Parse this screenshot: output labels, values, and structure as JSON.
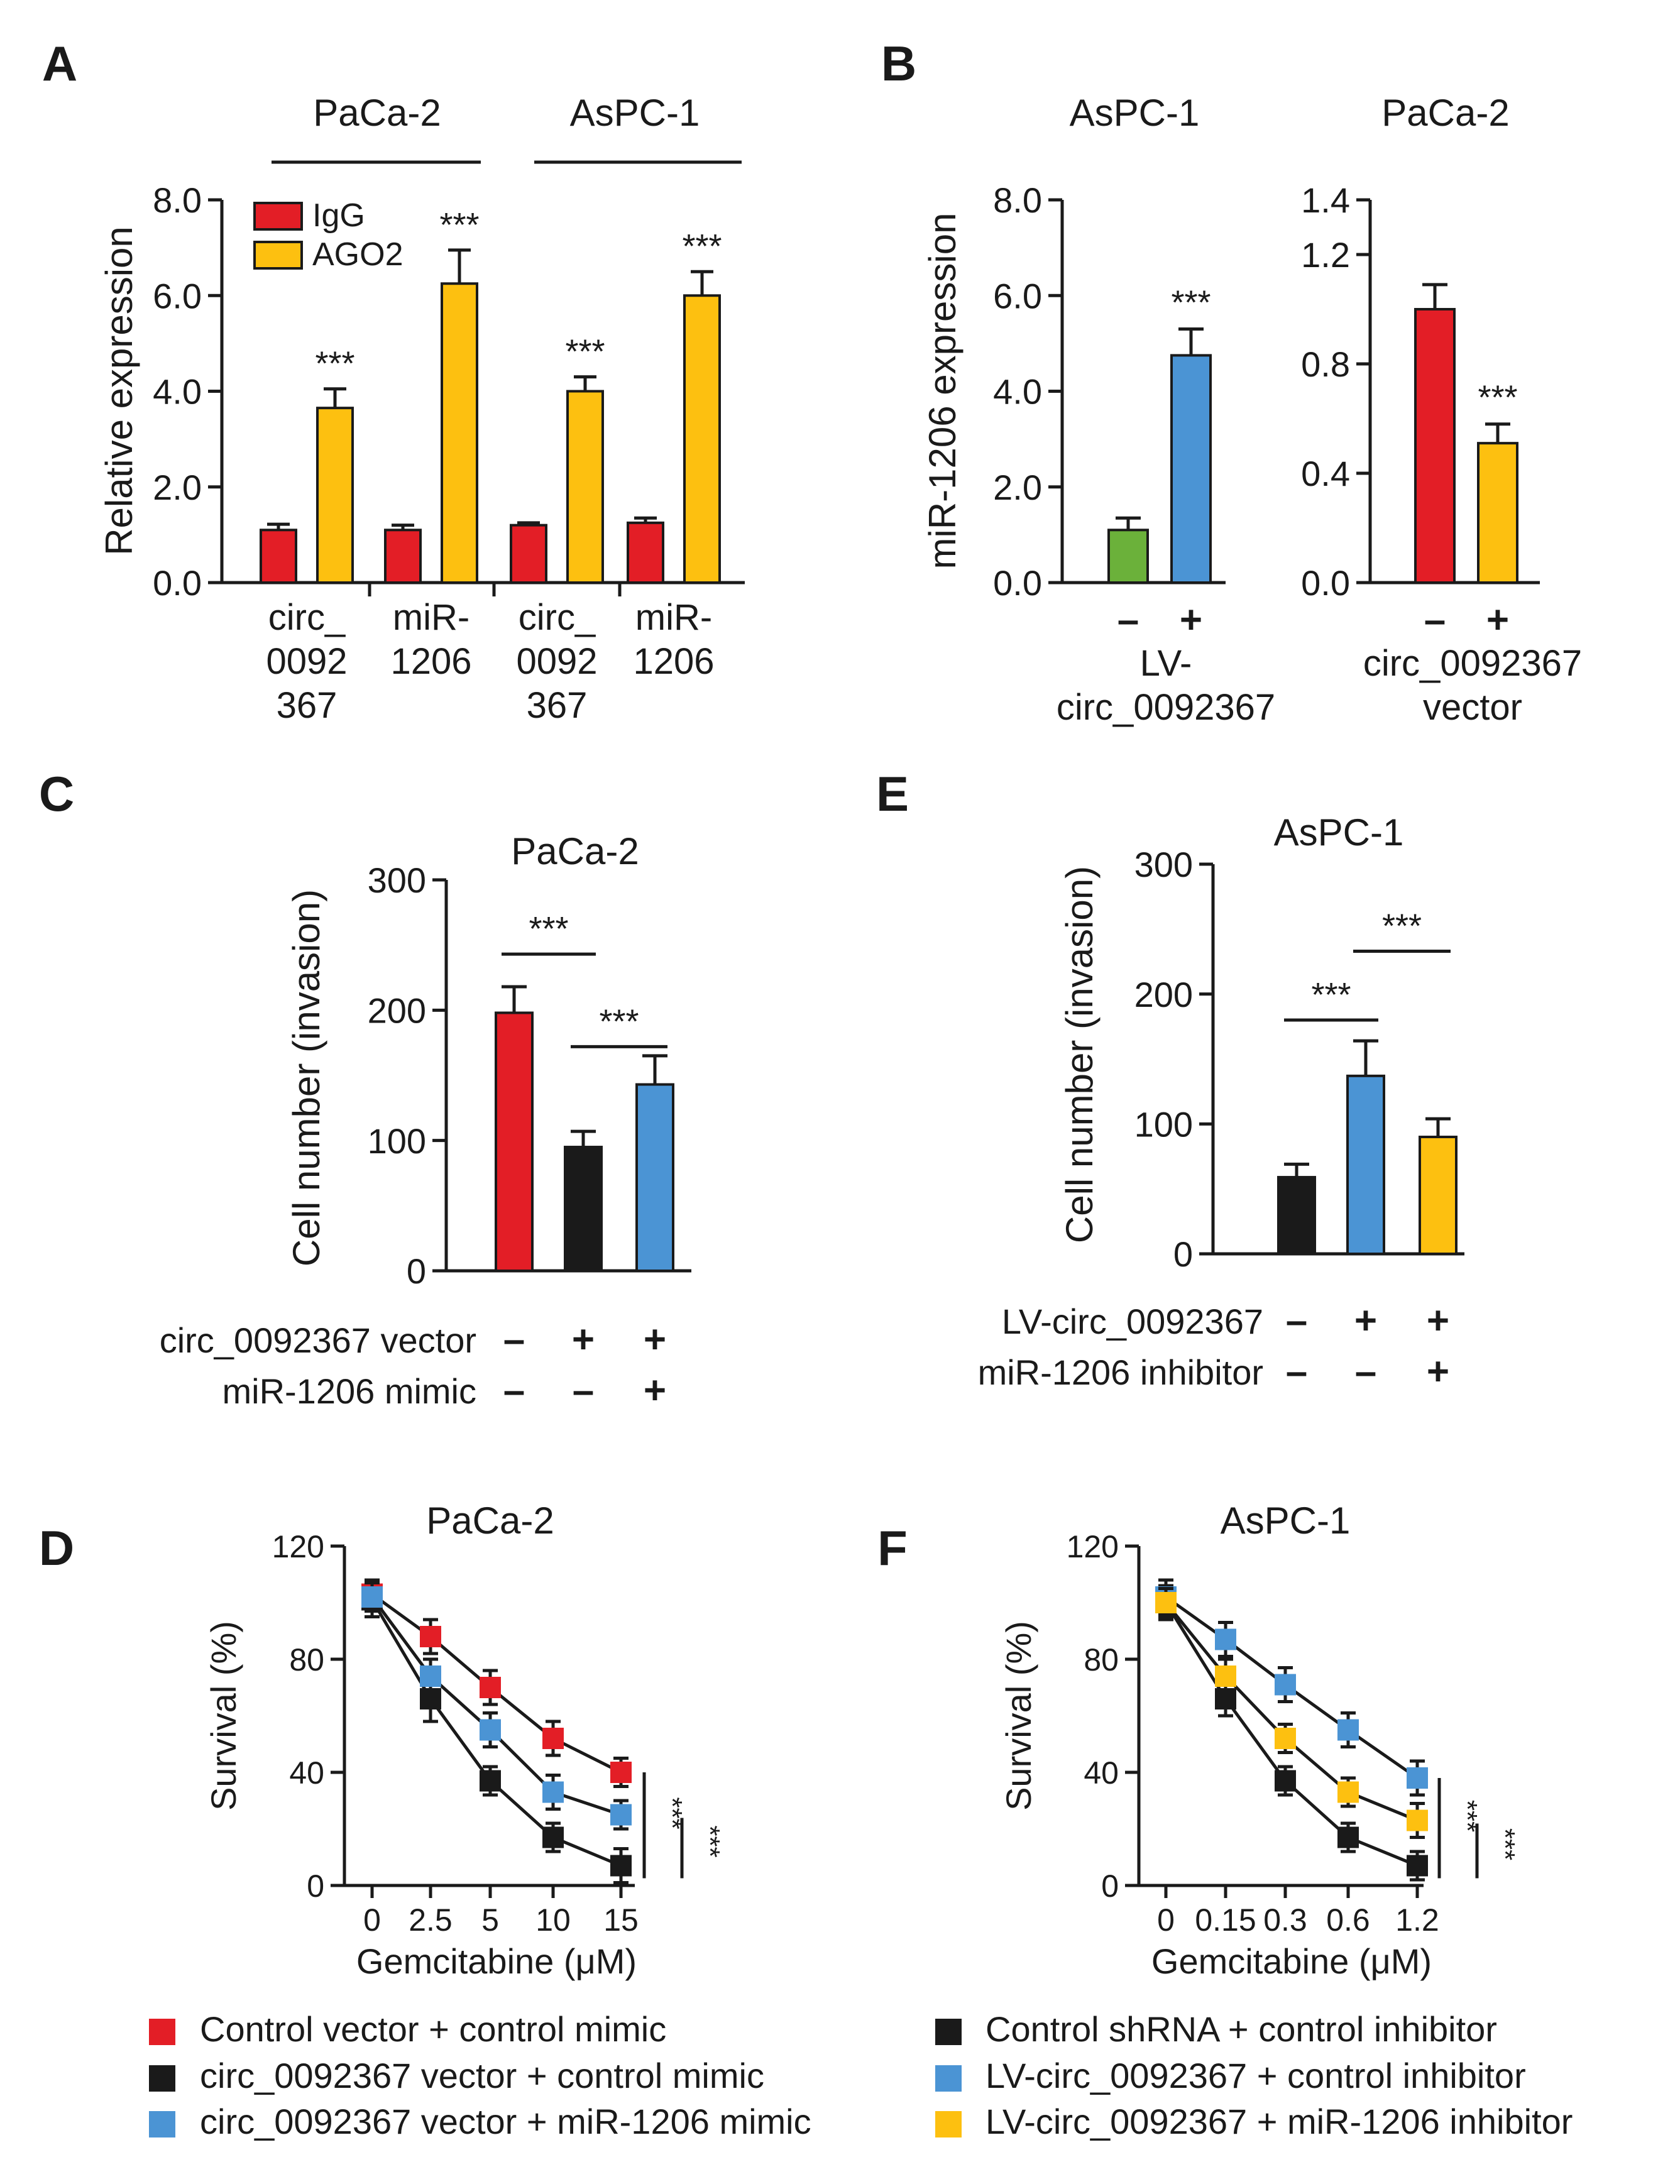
{
  "colors": {
    "red": "#e31e26",
    "yellow": "#fdc010",
    "green": "#6bb13a",
    "blue": "#4b94d4",
    "black": "#1a1a1a"
  },
  "chart_data": [
    {
      "id": "A",
      "type": "bar",
      "panel_letter": "A",
      "ylabel": "Relative expression",
      "ylim": [
        0,
        8
      ],
      "yticks": [
        "0.0",
        "2.0",
        "4.0",
        "6.0",
        "8.0"
      ],
      "group_headers": [
        "PaCa-2",
        "AsPC-1"
      ],
      "categories": [
        [
          "circ_",
          "0092",
          "367"
        ],
        [
          "miR-",
          "1206"
        ],
        [
          "circ_",
          "0092",
          "367"
        ],
        [
          "miR-",
          "1206"
        ]
      ],
      "legend": [
        "IgG",
        "AGO2"
      ],
      "series": [
        {
          "name": "IgG",
          "color": "red",
          "values": [
            1.1,
            1.1,
            1.2,
            1.25
          ],
          "err": [
            0.12,
            0.1,
            0.05,
            0.1
          ]
        },
        {
          "name": "AGO2",
          "color": "yellow",
          "values": [
            3.65,
            6.25,
            4.0,
            6.0
          ],
          "err": [
            0.4,
            0.7,
            0.3,
            0.5
          ]
        }
      ],
      "sig": [
        "***",
        "***",
        "***",
        "***"
      ]
    },
    {
      "id": "B1",
      "type": "bar",
      "panel_letter": "B",
      "title": "AsPC-1",
      "ylabel": "miR-1206 expression",
      "ylim": [
        0,
        8
      ],
      "yticks": [
        "0.0",
        "2.0",
        "4.0",
        "6.0",
        "8.0"
      ],
      "signs": [
        "–",
        "+"
      ],
      "condition": [
        "LV-",
        "circ_0092367"
      ],
      "bars": [
        {
          "value": 1.1,
          "err": 0.25,
          "color": "green"
        },
        {
          "value": 4.75,
          "err": 0.55,
          "color": "blue"
        }
      ],
      "sig": "***"
    },
    {
      "id": "B2",
      "type": "bar",
      "title": "PaCa-2",
      "ylim": [
        0,
        1.4
      ],
      "yticks": [
        "0.0",
        "0.4",
        "0.8",
        "1.2",
        "1.4"
      ],
      "signs": [
        "–",
        "+"
      ],
      "condition": [
        "circ_0092367",
        "vector"
      ],
      "bars": [
        {
          "value": 1.0,
          "err": 0.09,
          "color": "red"
        },
        {
          "value": 0.51,
          "err": 0.07,
          "color": "yellow"
        }
      ],
      "sig": "***"
    },
    {
      "id": "C",
      "type": "bar",
      "panel_letter": "C",
      "title": "PaCa-2",
      "ylabel": "Cell number (invasion)",
      "ylim": [
        0,
        300
      ],
      "yticks": [
        "0",
        "100",
        "200",
        "300"
      ],
      "bars": [
        {
          "value": 198,
          "err": 20,
          "color": "red"
        },
        {
          "value": 95,
          "err": 12,
          "color": "black"
        },
        {
          "value": 143,
          "err": 22,
          "color": "blue"
        }
      ],
      "sig_lines": [
        {
          "label": "***",
          "from": 0,
          "to": 1,
          "level": 243
        },
        {
          "label": "***",
          "from": 1,
          "to": 2,
          "level": 172
        }
      ],
      "conditions": [
        {
          "label": "circ_0092367 vector",
          "signs": [
            "–",
            "+",
            "+"
          ]
        },
        {
          "label": "miR-1206 mimic",
          "signs": [
            "–",
            "–",
            "+"
          ]
        }
      ]
    },
    {
      "id": "E",
      "type": "bar",
      "panel_letter": "E",
      "title": "AsPC-1",
      "ylabel": "Cell number (invasion)",
      "ylim": [
        0,
        300
      ],
      "yticks": [
        "0",
        "100",
        "200",
        "300"
      ],
      "bars": [
        {
          "value": 59,
          "err": 10,
          "color": "black"
        },
        {
          "value": 137,
          "err": 27,
          "color": "blue"
        },
        {
          "value": 90,
          "err": 14,
          "color": "yellow"
        }
      ],
      "sig_lines": [
        {
          "label": "***",
          "from": 0,
          "to": 1,
          "level": 180
        },
        {
          "label": "***",
          "from": 1,
          "to": 2,
          "level": 233
        }
      ],
      "conditions": [
        {
          "label": "LV-circ_0092367",
          "signs": [
            "–",
            "+",
            "+"
          ]
        },
        {
          "label": "miR-1206 inhibitor",
          "signs": [
            "–",
            "–",
            "+"
          ]
        }
      ]
    },
    {
      "id": "D",
      "type": "line",
      "panel_letter": "D",
      "title": "PaCa-2",
      "ylabel": "Survival (%)",
      "xlabel": "Gemcitabine (μM)",
      "x": [
        "0",
        "2.5",
        "5",
        "10",
        "15"
      ],
      "ylim": [
        0,
        120
      ],
      "yticks": [
        "0",
        "40",
        "80",
        "120"
      ],
      "series": [
        {
          "name": "Control vector + control mimic",
          "color": "red",
          "values": [
            103,
            88,
            70,
            52,
            40
          ],
          "err": [
            5,
            6,
            6,
            6,
            5
          ]
        },
        {
          "name": "circ_0092367 vector + control mimic",
          "color": "black",
          "values": [
            101,
            66,
            37,
            17,
            7
          ],
          "err": [
            6,
            8,
            5,
            5,
            6
          ]
        },
        {
          "name": "circ_0092367 vector + miR-1206 mimic",
          "color": "blue",
          "values": [
            102,
            74,
            55,
            33,
            25
          ],
          "err": [
            5,
            6,
            6,
            6,
            5
          ]
        }
      ],
      "sig": [
        "***",
        "***"
      ]
    },
    {
      "id": "F",
      "type": "line",
      "panel_letter": "F",
      "title": "AsPC-1",
      "ylabel": "Survival (%)",
      "xlabel": "Gemcitabine (μM)",
      "x": [
        "0",
        "0.15",
        "0.3",
        "0.6",
        "1.2"
      ],
      "ylim": [
        0,
        120
      ],
      "yticks": [
        "0",
        "40",
        "80",
        "120"
      ],
      "series": [
        {
          "name": "Control shRNA + control inhibitor",
          "color": "black",
          "values": [
            100,
            66,
            37,
            17,
            7
          ],
          "err": [
            6,
            6,
            5,
            5,
            5
          ]
        },
        {
          "name": "LV-circ_0092367 + control inhibitor",
          "color": "blue",
          "values": [
            102,
            87,
            71,
            55,
            38
          ],
          "err": [
            6,
            6,
            6,
            6,
            6
          ]
        },
        {
          "name": "LV-circ_0092367 + miR-1206 inhibitor",
          "color": "yellow",
          "values": [
            100,
            74,
            52,
            33,
            23
          ],
          "err": [
            5,
            6,
            5,
            5,
            6
          ]
        }
      ],
      "sig": [
        "***",
        "***"
      ]
    }
  ]
}
